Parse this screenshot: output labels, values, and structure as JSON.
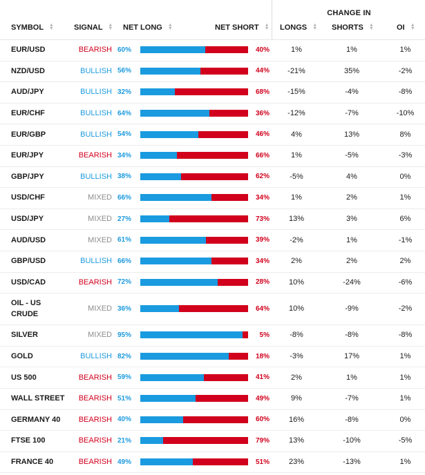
{
  "headers": {
    "change_in": "CHANGE IN",
    "symbol": "SYMBOL",
    "signal": "SIGNAL",
    "net_long": "NET LONG",
    "net_short": "NET SHORT",
    "longs": "LONGS",
    "shorts": "SHORTS",
    "oi": "OI"
  },
  "colors": {
    "bearish": "#d1001c",
    "bullish": "#1c9ade",
    "mixed": "#8c8c8c",
    "long_bar": "#1a9be0",
    "short_bar": "#d1001c"
  },
  "rows": [
    {
      "symbol": "EUR/USD",
      "signal": "BEARISH",
      "net_long": "60%",
      "net_short": "40%",
      "longs": "1%",
      "shorts": "1%",
      "oi": "1%",
      "long_pct": 60
    },
    {
      "symbol": "NZD/USD",
      "signal": "BULLISH",
      "net_long": "56%",
      "net_short": "44%",
      "longs": "-21%",
      "shorts": "35%",
      "oi": "-2%",
      "long_pct": 56
    },
    {
      "symbol": "AUD/JPY",
      "signal": "BULLISH",
      "net_long": "32%",
      "net_short": "68%",
      "longs": "-15%",
      "shorts": "-4%",
      "oi": "-8%",
      "long_pct": 32
    },
    {
      "symbol": "EUR/CHF",
      "signal": "BULLISH",
      "net_long": "64%",
      "net_short": "36%",
      "longs": "-12%",
      "shorts": "-7%",
      "oi": "-10%",
      "long_pct": 64
    },
    {
      "symbol": "EUR/GBP",
      "signal": "BULLISH",
      "net_long": "54%",
      "net_short": "46%",
      "longs": "4%",
      "shorts": "13%",
      "oi": "8%",
      "long_pct": 54
    },
    {
      "symbol": "EUR/JPY",
      "signal": "BEARISH",
      "net_long": "34%",
      "net_short": "66%",
      "longs": "1%",
      "shorts": "-5%",
      "oi": "-3%",
      "long_pct": 34
    },
    {
      "symbol": "GBP/JPY",
      "signal": "BULLISH",
      "net_long": "38%",
      "net_short": "62%",
      "longs": "-5%",
      "shorts": "4%",
      "oi": "0%",
      "long_pct": 38
    },
    {
      "symbol": "USD/CHF",
      "signal": "MIXED",
      "net_long": "66%",
      "net_short": "34%",
      "longs": "1%",
      "shorts": "2%",
      "oi": "1%",
      "long_pct": 66
    },
    {
      "symbol": "USD/JPY",
      "signal": "MIXED",
      "net_long": "27%",
      "net_short": "73%",
      "longs": "13%",
      "shorts": "3%",
      "oi": "6%",
      "long_pct": 27
    },
    {
      "symbol": "AUD/USD",
      "signal": "MIXED",
      "net_long": "61%",
      "net_short": "39%",
      "longs": "-2%",
      "shorts": "1%",
      "oi": "-1%",
      "long_pct": 61
    },
    {
      "symbol": "GBP/USD",
      "signal": "BULLISH",
      "net_long": "66%",
      "net_short": "34%",
      "longs": "2%",
      "shorts": "2%",
      "oi": "2%",
      "long_pct": 66
    },
    {
      "symbol": "USD/CAD",
      "signal": "BEARISH",
      "net_long": "72%",
      "net_short": "28%",
      "longs": "10%",
      "shorts": "-24%",
      "oi": "-6%",
      "long_pct": 72
    },
    {
      "symbol": "OIL - US CRUDE",
      "signal": "MIXED",
      "net_long": "36%",
      "net_short": "64%",
      "longs": "10%",
      "shorts": "-9%",
      "oi": "-2%",
      "long_pct": 36
    },
    {
      "symbol": "SILVER",
      "signal": "MIXED",
      "net_long": "95%",
      "net_short": "5%",
      "longs": "-8%",
      "shorts": "-8%",
      "oi": "-8%",
      "long_pct": 95
    },
    {
      "symbol": "GOLD",
      "signal": "BULLISH",
      "net_long": "82%",
      "net_short": "18%",
      "longs": "-3%",
      "shorts": "17%",
      "oi": "1%",
      "long_pct": 82
    },
    {
      "symbol": "US 500",
      "signal": "BEARISH",
      "net_long": "59%",
      "net_short": "41%",
      "longs": "2%",
      "shorts": "1%",
      "oi": "1%",
      "long_pct": 59
    },
    {
      "symbol": "WALL STREET",
      "signal": "BEARISH",
      "net_long": "51%",
      "net_short": "49%",
      "longs": "9%",
      "shorts": "-7%",
      "oi": "1%",
      "long_pct": 51
    },
    {
      "symbol": "GERMANY 40",
      "signal": "BEARISH",
      "net_long": "40%",
      "net_short": "60%",
      "longs": "16%",
      "shorts": "-8%",
      "oi": "0%",
      "long_pct": 40
    },
    {
      "symbol": "FTSE 100",
      "signal": "BEARISH",
      "net_long": "21%",
      "net_short": "79%",
      "longs": "13%",
      "shorts": "-10%",
      "oi": "-5%",
      "long_pct": 21
    },
    {
      "symbol": "FRANCE 40",
      "signal": "BEARISH",
      "net_long": "49%",
      "net_short": "51%",
      "longs": "23%",
      "shorts": "-13%",
      "oi": "1%",
      "long_pct": 49
    }
  ]
}
